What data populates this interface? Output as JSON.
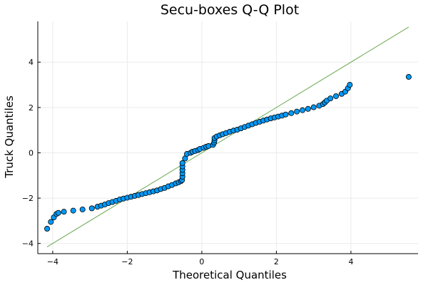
{
  "chart_data": {
    "type": "scatter",
    "title": "Secu-boxes Q-Q Plot",
    "xlabel": "Theoretical Quantiles",
    "ylabel": "Truck Quantiles",
    "xlim": [
      -4.4,
      5.8
    ],
    "ylim": [
      -4.45,
      5.8
    ],
    "xticks": [
      -4,
      -2,
      0,
      2,
      4
    ],
    "yticks": [
      -4,
      -2,
      0,
      2,
      4
    ],
    "grid": true,
    "legend": "none",
    "point_color": "#009af9",
    "line_color": "#6aa84f",
    "reference_line": {
      "x": [
        -4.15,
        5.55
      ],
      "y": [
        -4.15,
        5.55
      ]
    },
    "series": [
      {
        "values": [
          [
            -4.15,
            -3.35
          ],
          [
            -4.05,
            -3.05
          ],
          [
            -3.97,
            -2.85
          ],
          [
            -3.9,
            -2.7
          ],
          [
            -3.85,
            -2.65
          ],
          [
            -3.7,
            -2.6
          ],
          [
            -3.45,
            -2.55
          ],
          [
            -3.2,
            -2.5
          ],
          [
            -2.95,
            -2.45
          ],
          [
            -2.8,
            -2.38
          ],
          [
            -2.7,
            -2.33
          ],
          [
            -2.6,
            -2.28
          ],
          [
            -2.5,
            -2.22
          ],
          [
            -2.4,
            -2.17
          ],
          [
            -2.3,
            -2.12
          ],
          [
            -2.2,
            -2.06
          ],
          [
            -2.1,
            -2.02
          ],
          [
            -2.0,
            -1.98
          ],
          [
            -1.9,
            -1.94
          ],
          [
            -1.8,
            -1.9
          ],
          [
            -1.7,
            -1.86
          ],
          [
            -1.6,
            -1.82
          ],
          [
            -1.5,
            -1.78
          ],
          [
            -1.4,
            -1.74
          ],
          [
            -1.3,
            -1.7
          ],
          [
            -1.2,
            -1.66
          ],
          [
            -1.1,
            -1.6
          ],
          [
            -1.0,
            -1.55
          ],
          [
            -0.9,
            -1.48
          ],
          [
            -0.8,
            -1.42
          ],
          [
            -0.7,
            -1.35
          ],
          [
            -0.62,
            -1.3
          ],
          [
            -0.56,
            -1.25
          ],
          [
            -0.53,
            -1.2
          ],
          [
            -0.52,
            -1.05
          ],
          [
            -0.52,
            -0.9
          ],
          [
            -0.52,
            -0.75
          ],
          [
            -0.52,
            -0.6
          ],
          [
            -0.52,
            -0.45
          ],
          [
            -0.45,
            -0.25
          ],
          [
            -0.4,
            -0.05
          ],
          [
            -0.3,
            0.0
          ],
          [
            -0.25,
            0.05
          ],
          [
            -0.18,
            0.08
          ],
          [
            -0.1,
            0.12
          ],
          [
            -0.05,
            0.17
          ],
          [
            0.05,
            0.22
          ],
          [
            0.12,
            0.27
          ],
          [
            0.18,
            0.3
          ],
          [
            0.3,
            0.35
          ],
          [
            0.33,
            0.45
          ],
          [
            0.34,
            0.55
          ],
          [
            0.34,
            0.65
          ],
          [
            0.4,
            0.72
          ],
          [
            0.48,
            0.77
          ],
          [
            0.56,
            0.82
          ],
          [
            0.65,
            0.87
          ],
          [
            0.75,
            0.93
          ],
          [
            0.85,
            0.98
          ],
          [
            0.95,
            1.02
          ],
          [
            1.05,
            1.08
          ],
          [
            1.15,
            1.14
          ],
          [
            1.25,
            1.2
          ],
          [
            1.35,
            1.26
          ],
          [
            1.45,
            1.32
          ],
          [
            1.55,
            1.37
          ],
          [
            1.65,
            1.42
          ],
          [
            1.75,
            1.47
          ],
          [
            1.85,
            1.52
          ],
          [
            1.95,
            1.56
          ],
          [
            2.05,
            1.6
          ],
          [
            2.15,
            1.64
          ],
          [
            2.25,
            1.69
          ],
          [
            2.4,
            1.75
          ],
          [
            2.55,
            1.82
          ],
          [
            2.7,
            1.88
          ],
          [
            2.85,
            1.94
          ],
          [
            3.0,
            2.01
          ],
          [
            3.15,
            2.08
          ],
          [
            3.25,
            2.15
          ],
          [
            3.3,
            2.22
          ],
          [
            3.35,
            2.3
          ],
          [
            3.45,
            2.4
          ],
          [
            3.6,
            2.5
          ],
          [
            3.75,
            2.6
          ],
          [
            3.85,
            2.7
          ],
          [
            3.92,
            2.85
          ],
          [
            3.97,
            3.0
          ],
          [
            5.55,
            3.35
          ]
        ]
      }
    ]
  }
}
